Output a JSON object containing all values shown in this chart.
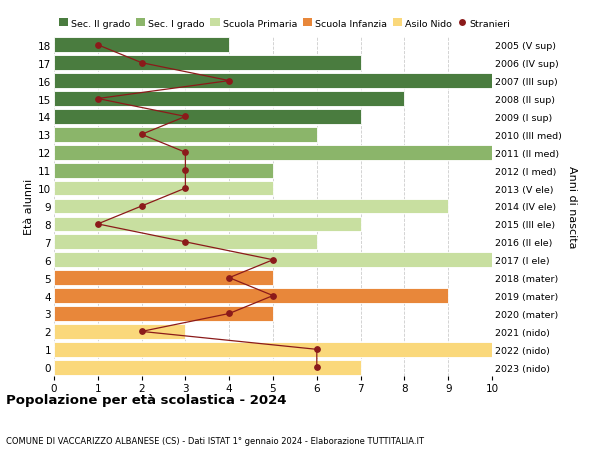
{
  "ages": [
    0,
    1,
    2,
    3,
    4,
    5,
    6,
    7,
    8,
    9,
    10,
    11,
    12,
    13,
    14,
    15,
    16,
    17,
    18
  ],
  "right_labels": [
    "2023 (nido)",
    "2022 (nido)",
    "2021 (nido)",
    "2020 (mater)",
    "2019 (mater)",
    "2018 (mater)",
    "2017 (I ele)",
    "2016 (II ele)",
    "2015 (III ele)",
    "2014 (IV ele)",
    "2013 (V ele)",
    "2012 (I med)",
    "2011 (II med)",
    "2010 (III med)",
    "2009 (I sup)",
    "2008 (II sup)",
    "2007 (III sup)",
    "2006 (IV sup)",
    "2005 (V sup)"
  ],
  "bar_values": [
    7,
    10,
    3,
    5,
    9,
    5,
    10,
    6,
    7,
    9,
    5,
    5,
    10,
    6,
    7,
    8,
    10,
    7,
    4
  ],
  "stranieri": [
    6,
    6,
    2,
    4,
    5,
    4,
    5,
    3,
    1,
    2,
    3,
    3,
    3,
    2,
    3,
    1,
    4,
    2,
    1
  ],
  "bar_colors": [
    "#FAD87B",
    "#FAD87B",
    "#FAD87B",
    "#E8873A",
    "#E8873A",
    "#E8873A",
    "#C8DFA0",
    "#C8DFA0",
    "#C8DFA0",
    "#C8DFA0",
    "#C8DFA0",
    "#8BB56A",
    "#8BB56A",
    "#8BB56A",
    "#4A7C3F",
    "#4A7C3F",
    "#4A7C3F",
    "#4A7C3F",
    "#4A7C3F"
  ],
  "stranieri_color": "#8B1A1A",
  "line_color": "#8B1A1A",
  "bg_color": "#FFFFFF",
  "grid_color": "#CCCCCC",
  "title": "Popolazione per età scolastica - 2024",
  "subtitle": "COMUNE DI VACCARIZZO ALBANESE (CS) - Dati ISTAT 1° gennaio 2024 - Elaborazione TUTTITALIA.IT",
  "ylabel_left": "Età alunni",
  "ylabel_right": "Anni di nascita",
  "legend_labels": [
    "Sec. II grado",
    "Sec. I grado",
    "Scuola Primaria",
    "Scuola Infanzia",
    "Asilo Nido",
    "Stranieri"
  ],
  "legend_colors": [
    "#4A7C3F",
    "#8BB56A",
    "#C8DFA0",
    "#E8873A",
    "#FAD87B",
    "#8B1A1A"
  ],
  "xlim": [
    0,
    10
  ],
  "ylim": [
    -0.5,
    18.5
  ]
}
